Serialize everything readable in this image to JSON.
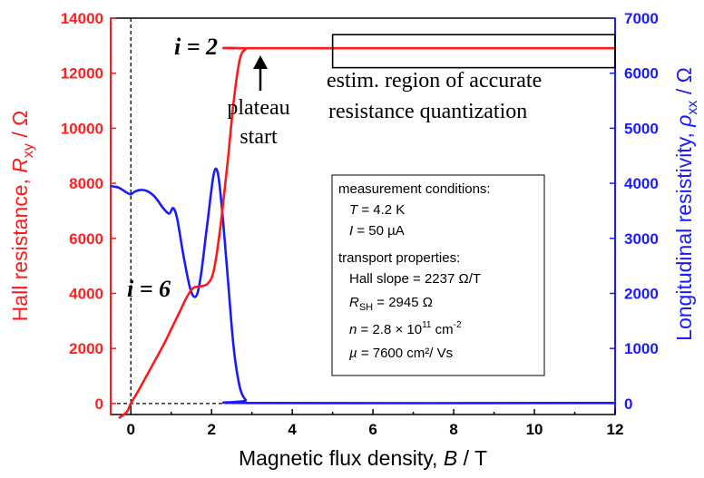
{
  "chart_data": {
    "type": "line",
    "xlabel_prefix": "Magnetic flux density, ",
    "xlabel_var": "B",
    "xlabel_suffix": " / T",
    "ylabel_left_prefix": "Hall resistance, ",
    "ylabel_left_var": "R",
    "ylabel_left_sub": "xy",
    "ylabel_left_suffix": " / Ω",
    "ylabel_right_prefix": "Longitudinal resistivity, ",
    "ylabel_right_var": "ρ",
    "ylabel_right_sub": "xx",
    "ylabel_right_suffix": " / Ω",
    "xlim": [
      -0.5,
      12
    ],
    "ylim_left": [
      -400,
      14000
    ],
    "ylim_right": [
      -200,
      7000
    ],
    "x_ticks": [
      "0",
      "2",
      "4",
      "6",
      "8",
      "10",
      "12"
    ],
    "y_left_ticks": [
      "0",
      "2000",
      "4000",
      "6000",
      "8000",
      "10000",
      "12000",
      "14000"
    ],
    "y_right_ticks": [
      "0",
      "1000",
      "2000",
      "3000",
      "4000",
      "5000",
      "6000",
      "7000"
    ],
    "colors": {
      "hall": "#ff1a1a",
      "rho": "#1a1aff",
      "axis_left": "#ff1a1a",
      "axis_right": "#1a1aff"
    },
    "series": [
      {
        "name": "Hall resistance R_xy",
        "axis": "left",
        "points": [
          [
            -0.3,
            -600
          ],
          [
            -0.1,
            -300
          ],
          [
            0.0,
            0
          ],
          [
            0.2,
            500
          ],
          [
            0.5,
            1300
          ],
          [
            0.8,
            2100
          ],
          [
            1.0,
            2700
          ],
          [
            1.2,
            3300
          ],
          [
            1.4,
            3900
          ],
          [
            1.55,
            4200
          ],
          [
            1.7,
            4250
          ],
          [
            1.9,
            4350
          ],
          [
            2.05,
            4800
          ],
          [
            2.2,
            6200
          ],
          [
            2.4,
            8800
          ],
          [
            2.55,
            11000
          ],
          [
            2.7,
            12500
          ],
          [
            2.85,
            12880
          ],
          [
            3.0,
            12906
          ],
          [
            12,
            12906
          ]
        ]
      },
      {
        "name": "Longitudinal resistivity ρ_xx",
        "axis": "right",
        "points": [
          [
            -0.5,
            3950
          ],
          [
            -0.3,
            3920
          ],
          [
            -0.1,
            3830
          ],
          [
            0.0,
            3800
          ],
          [
            0.1,
            3850
          ],
          [
            0.25,
            3880
          ],
          [
            0.4,
            3860
          ],
          [
            0.6,
            3750
          ],
          [
            0.8,
            3550
          ],
          [
            0.95,
            3450
          ],
          [
            1.05,
            3550
          ],
          [
            1.15,
            3350
          ],
          [
            1.3,
            2700
          ],
          [
            1.45,
            2150
          ],
          [
            1.55,
            1950
          ],
          [
            1.65,
            2000
          ],
          [
            1.75,
            2400
          ],
          [
            1.9,
            3300
          ],
          [
            2.05,
            4150
          ],
          [
            2.15,
            4200
          ],
          [
            2.25,
            3600
          ],
          [
            2.4,
            2300
          ],
          [
            2.55,
            1000
          ],
          [
            2.7,
            300
          ],
          [
            2.85,
            60
          ],
          [
            3.0,
            10
          ],
          [
            12,
            10
          ]
        ]
      }
    ],
    "annotations": {
      "i2": "i = 2",
      "i6": "i = 6",
      "plateau_1": "plateau",
      "plateau_2": "start",
      "region_1": "estim. region of accurate",
      "region_2": "resistance quantization",
      "region_x": [
        5,
        12
      ],
      "region_y_left": [
        12200,
        13400
      ]
    },
    "infobox": {
      "heading1": "measurement conditions:",
      "t_var": "T",
      "t_val": " = 4.2 K",
      "i_var": "I",
      "i_val": " = 50 µA",
      "heading2": "transport properties:",
      "hall_slope": "Hall slope = 2237 Ω/T",
      "rsh_var": "R",
      "rsh_sub": "SH",
      "rsh_val": " = 2945 Ω",
      "n_var": "n",
      "n_val": " = 2.8 × 10",
      "n_exp": "11",
      "n_unit": " cm",
      "n_unit_exp": "-2",
      "mu_var": "µ",
      "mu_val": " = 7600 cm²/ Vs"
    }
  }
}
